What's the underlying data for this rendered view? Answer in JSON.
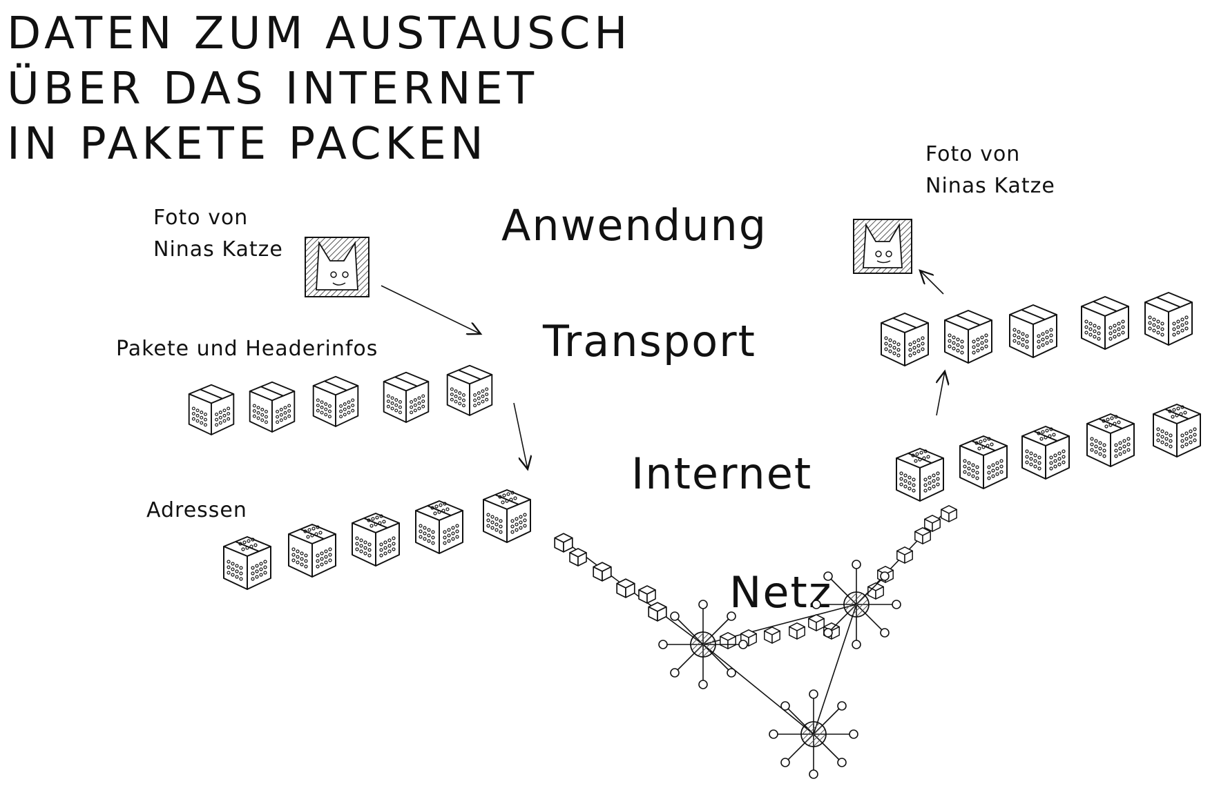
{
  "title": {
    "lines": [
      "DATEN ZUM AUSTAUSCH",
      "ÜBER DAS INTERNET",
      "IN PAKETE PACKEN"
    ]
  },
  "sender": {
    "photo_label": [
      "Foto von",
      "Ninas Katze"
    ],
    "packets_label": "Pakete und Headerinfos",
    "addresses_label": "Adressen"
  },
  "receiver": {
    "photo_label": [
      "Foto von",
      "Ninas Katze"
    ]
  },
  "layers": {
    "application": "Anwendung",
    "transport": "Transport",
    "internet": "Internet",
    "network": "Netz"
  },
  "icons": {
    "photo": "cat-photo-icon",
    "packet": "package-box-icon",
    "router": "network-node-icon",
    "arrow": "arrow-icon"
  },
  "colors": {
    "ink": "#111111",
    "hatch": "#555555",
    "background": "#ffffff"
  }
}
